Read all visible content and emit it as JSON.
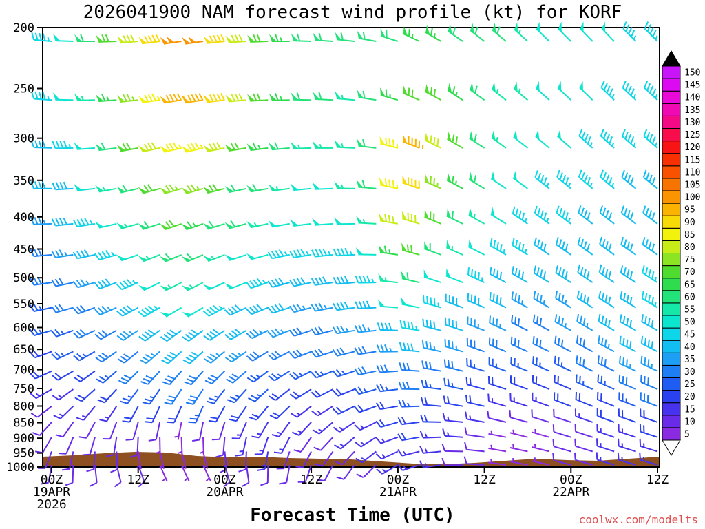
{
  "title": "2026041900 NAM forecast wind profile (kt) for KORF",
  "xlabel": "Forecast Time (UTC)",
  "watermark": "coolwx.com/modelts",
  "colors": {
    "background": "#ffffff",
    "frame": "#000000",
    "terrain": "#8e4f21",
    "watermark": "#e05050"
  },
  "colorbar": {
    "values": [
      5,
      10,
      15,
      20,
      25,
      30,
      35,
      40,
      45,
      50,
      55,
      60,
      65,
      70,
      75,
      80,
      85,
      90,
      95,
      100,
      105,
      110,
      115,
      120,
      125,
      130,
      135,
      140,
      145,
      150
    ],
    "colors": [
      "#8a2be2",
      "#6a2be8",
      "#4733ee",
      "#2a41f0",
      "#1e5cf2",
      "#1e7ef4",
      "#1e9ff6",
      "#12bdf2",
      "#0cd6e8",
      "#0ce6cf",
      "#15e8a8",
      "#22e27a",
      "#2edc4e",
      "#4fdc2e",
      "#8ce422",
      "#c8ec18",
      "#f2f20c",
      "#f8da06",
      "#fab400",
      "#fa9400",
      "#f87400",
      "#f85200",
      "#f83000",
      "#f81414",
      "#f80c4c",
      "#f50a86",
      "#f00ab4",
      "#ea0ad8",
      "#dc0af0",
      "#c814f8"
    ],
    "over_color": "#000000",
    "under_color": "#ffffff"
  },
  "chart_data": {
    "type": "wind-barb time-height profile",
    "model": "NAM",
    "init_time": "2026041900",
    "station": "KORF",
    "units": "kt",
    "y_axis": "pressure hPa, log scale, 200 top to 1000 bottom",
    "hours_span": 84,
    "barb_interval_hours": 3,
    "pressure_levels_hPa": [
      200,
      250,
      300,
      350,
      400,
      450,
      500,
      550,
      600,
      650,
      700,
      750,
      800,
      850,
      900,
      950,
      1000
    ],
    "time_ticks": [
      {
        "hour": 0,
        "label": "00Z"
      },
      {
        "hour": 12,
        "label": "12Z"
      },
      {
        "hour": 24,
        "label": "00Z"
      },
      {
        "hour": 36,
        "label": "12Z"
      },
      {
        "hour": 48,
        "label": "00Z"
      },
      {
        "hour": 60,
        "label": "12Z"
      },
      {
        "hour": 72,
        "label": "00Z"
      },
      {
        "hour": 84,
        "label": "12Z"
      }
    ],
    "date_labels": [
      {
        "hour": 0,
        "label": "19APR"
      },
      {
        "hour": 24,
        "label": "20APR"
      },
      {
        "hour": 48,
        "label": "21APR"
      },
      {
        "hour": 72,
        "label": "22APR"
      }
    ],
    "year_label": "2026",
    "speeds_kt": [
      [
        45,
        50,
        60,
        70,
        80,
        90,
        100,
        100,
        90,
        80,
        72,
        65,
        60,
        60,
        58,
        60,
        62,
        65,
        65,
        62,
        60,
        58,
        55,
        52,
        50,
        50,
        48,
        46,
        45
      ],
      [
        45,
        48,
        55,
        65,
        75,
        85,
        95,
        95,
        88,
        78,
        70,
        64,
        60,
        58,
        57,
        60,
        65,
        70,
        68,
        64,
        60,
        56,
        54,
        52,
        50,
        48,
        46,
        45,
        44
      ],
      [
        40,
        44,
        50,
        58,
        68,
        78,
        85,
        85,
        78,
        70,
        64,
        60,
        56,
        55,
        56,
        62,
        85,
        95,
        80,
        70,
        62,
        56,
        52,
        50,
        48,
        46,
        45,
        44,
        43
      ],
      [
        38,
        42,
        48,
        54,
        62,
        70,
        75,
        74,
        68,
        62,
        58,
        55,
        52,
        52,
        54,
        60,
        85,
        90,
        75,
        65,
        58,
        52,
        50,
        47,
        45,
        44,
        43,
        42,
        42
      ],
      [
        35,
        38,
        44,
        50,
        56,
        62,
        68,
        66,
        62,
        58,
        54,
        50,
        48,
        48,
        50,
        56,
        78,
        82,
        68,
        60,
        54,
        50,
        46,
        44,
        43,
        42,
        42,
        41,
        40
      ],
      [
        32,
        35,
        40,
        45,
        50,
        56,
        60,
        60,
        56,
        52,
        48,
        46,
        44,
        44,
        46,
        52,
        65,
        70,
        60,
        54,
        50,
        46,
        44,
        42,
        41,
        40,
        40,
        40,
        42
      ],
      [
        30,
        32,
        36,
        40,
        45,
        50,
        55,
        55,
        52,
        48,
        45,
        42,
        40,
        40,
        42,
        46,
        55,
        60,
        52,
        48,
        45,
        42,
        40,
        40,
        40,
        40,
        40,
        42,
        45
      ],
      [
        26,
        28,
        32,
        36,
        40,
        44,
        48,
        48,
        45,
        42,
        40,
        38,
        36,
        36,
        38,
        42,
        48,
        50,
        45,
        42,
        40,
        38,
        36,
        36,
        36,
        38,
        40,
        42,
        44
      ],
      [
        24,
        26,
        28,
        32,
        36,
        40,
        42,
        42,
        40,
        38,
        36,
        34,
        32,
        32,
        34,
        36,
        42,
        44,
        40,
        38,
        36,
        34,
        32,
        32,
        33,
        35,
        38,
        40,
        42
      ],
      [
        22,
        24,
        26,
        28,
        32,
        35,
        38,
        38,
        36,
        34,
        32,
        30,
        28,
        28,
        30,
        32,
        36,
        38,
        35,
        33,
        31,
        30,
        28,
        28,
        30,
        32,
        35,
        38,
        40
      ],
      [
        18,
        20,
        22,
        25,
        28,
        30,
        32,
        32,
        30,
        28,
        26,
        25,
        24,
        24,
        25,
        28,
        30,
        32,
        30,
        28,
        26,
        25,
        24,
        25,
        26,
        28,
        30,
        33,
        36
      ],
      [
        15,
        16,
        18,
        20,
        24,
        26,
        28,
        28,
        26,
        25,
        24,
        22,
        21,
        20,
        22,
        24,
        26,
        28,
        26,
        24,
        22,
        21,
        20,
        21,
        22,
        24,
        26,
        29,
        32
      ],
      [
        12,
        14,
        15,
        16,
        18,
        20,
        22,
        23,
        22,
        21,
        20,
        18,
        17,
        16,
        18,
        20,
        22,
        24,
        22,
        20,
        18,
        16,
        15,
        16,
        18,
        20,
        22,
        25,
        28
      ],
      [
        10,
        11,
        12,
        12,
        10,
        8,
        6,
        8,
        12,
        15,
        16,
        15,
        14,
        13,
        14,
        16,
        18,
        20,
        18,
        16,
        14,
        12,
        10,
        10,
        12,
        15,
        18,
        20,
        22
      ],
      [
        9,
        10,
        10,
        9,
        8,
        6,
        5,
        6,
        10,
        13,
        14,
        13,
        12,
        12,
        13,
        15,
        16,
        18,
        16,
        14,
        10,
        7,
        5,
        6,
        9,
        12,
        15,
        17,
        18
      ],
      [
        8,
        9,
        9,
        8,
        7,
        5,
        5,
        5,
        9,
        12,
        13,
        12,
        11,
        10,
        11,
        13,
        14,
        15,
        14,
        12,
        8,
        6,
        5,
        5,
        8,
        10,
        13,
        15,
        16
      ],
      [
        8,
        8,
        9,
        9,
        8,
        7,
        6,
        7,
        10,
        12,
        12,
        11,
        10,
        10,
        11,
        12,
        13,
        14,
        13,
        11,
        9,
        7,
        6,
        7,
        9,
        11,
        13,
        15,
        15
      ]
    ],
    "dirs_from_deg": [
      [
        275,
        272,
        270,
        268,
        265,
        263,
        262,
        262,
        264,
        266,
        268,
        270,
        272,
        274,
        276,
        280,
        288,
        295,
        300,
        305,
        308,
        310,
        312,
        314,
        315,
        316,
        316,
        315,
        315
      ],
      [
        274,
        271,
        269,
        266,
        264,
        262,
        261,
        261,
        263,
        265,
        267,
        269,
        271,
        273,
        275,
        279,
        286,
        293,
        298,
        303,
        306,
        308,
        310,
        312,
        313,
        314,
        314,
        313,
        313
      ],
      [
        272,
        269,
        266,
        263,
        260,
        258,
        257,
        257,
        259,
        261,
        263,
        265,
        268,
        270,
        273,
        277,
        284,
        291,
        296,
        300,
        303,
        306,
        308,
        310,
        311,
        312,
        312,
        311,
        311
      ],
      [
        270,
        267,
        264,
        260,
        257,
        255,
        254,
        254,
        256,
        258,
        260,
        263,
        265,
        268,
        271,
        275,
        282,
        289,
        294,
        298,
        301,
        304,
        306,
        308,
        309,
        310,
        310,
        309,
        309
      ],
      [
        268,
        264,
        261,
        257,
        254,
        252,
        251,
        251,
        253,
        255,
        258,
        260,
        263,
        266,
        269,
        273,
        280,
        287,
        292,
        296,
        299,
        302,
        304,
        306,
        307,
        308,
        308,
        307,
        307
      ],
      [
        265,
        261,
        258,
        254,
        251,
        248,
        247,
        247,
        249,
        252,
        255,
        258,
        261,
        264,
        267,
        271,
        278,
        285,
        290,
        294,
        297,
        300,
        302,
        304,
        305,
        306,
        306,
        305,
        305
      ],
      [
        262,
        258,
        254,
        250,
        247,
        244,
        243,
        243,
        246,
        249,
        252,
        255,
        258,
        262,
        265,
        269,
        276,
        283,
        288,
        292,
        295,
        298,
        300,
        302,
        303,
        304,
        304,
        303,
        303
      ],
      [
        258,
        254,
        250,
        246,
        242,
        240,
        239,
        239,
        242,
        245,
        248,
        252,
        255,
        259,
        262,
        267,
        274,
        281,
        286,
        290,
        293,
        296,
        298,
        300,
        301,
        302,
        302,
        301,
        301
      ],
      [
        254,
        250,
        245,
        241,
        237,
        235,
        234,
        234,
        237,
        240,
        244,
        248,
        252,
        256,
        260,
        264,
        272,
        279,
        284,
        288,
        291,
        294,
        296,
        298,
        299,
        300,
        300,
        299,
        299
      ],
      [
        250,
        245,
        240,
        235,
        231,
        229,
        228,
        228,
        231,
        235,
        239,
        243,
        248,
        252,
        256,
        261,
        269,
        276,
        282,
        286,
        289,
        292,
        294,
        296,
        297,
        298,
        298,
        297,
        297
      ],
      [
        245,
        240,
        234,
        229,
        225,
        222,
        221,
        221,
        225,
        229,
        233,
        238,
        243,
        248,
        252,
        258,
        266,
        274,
        280,
        284,
        287,
        290,
        292,
        294,
        295,
        296,
        296,
        295,
        295
      ],
      [
        240,
        234,
        228,
        222,
        217,
        214,
        213,
        213,
        217,
        222,
        227,
        232,
        238,
        243,
        248,
        254,
        263,
        271,
        277,
        282,
        285,
        288,
        290,
        292,
        293,
        294,
        294,
        293,
        293
      ],
      [
        232,
        226,
        219,
        213,
        208,
        205,
        204,
        204,
        209,
        214,
        220,
        226,
        232,
        238,
        244,
        250,
        260,
        268,
        275,
        280,
        283,
        286,
        288,
        290,
        291,
        292,
        292,
        291,
        291
      ],
      [
        222,
        215,
        208,
        201,
        196,
        192,
        191,
        191,
        197,
        203,
        210,
        216,
        223,
        230,
        237,
        244,
        254,
        263,
        271,
        276,
        280,
        283,
        285,
        287,
        288,
        289,
        290,
        289,
        289
      ],
      [
        210,
        203,
        196,
        189,
        183,
        179,
        178,
        178,
        185,
        192,
        199,
        207,
        215,
        223,
        230,
        238,
        250,
        260,
        268,
        274,
        278,
        281,
        284,
        286,
        287,
        288,
        289,
        288,
        288
      ],
      [
        200,
        192,
        184,
        177,
        171,
        167,
        166,
        166,
        174,
        182,
        190,
        198,
        207,
        215,
        223,
        232,
        245,
        256,
        265,
        271,
        276,
        280,
        282,
        284,
        286,
        287,
        288,
        287,
        287
      ],
      [
        190,
        182,
        174,
        166,
        160,
        156,
        155,
        155,
        164,
        172,
        181,
        190,
        199,
        208,
        217,
        226,
        240,
        252,
        262,
        269,
        274,
        278,
        281,
        283,
        285,
        286,
        287,
        286,
        286
      ]
    ],
    "terrain_profile": [
      [
        0,
        15
      ],
      [
        0.05,
        17
      ],
      [
        0.1,
        20
      ],
      [
        0.15,
        22
      ],
      [
        0.2,
        21
      ],
      [
        0.25,
        16
      ],
      [
        0.3,
        14
      ],
      [
        0.35,
        15
      ],
      [
        0.4,
        13
      ],
      [
        0.45,
        12
      ],
      [
        0.5,
        11
      ],
      [
        0.55,
        8
      ],
      [
        0.6,
        5
      ],
      [
        0.65,
        4
      ],
      [
        0.7,
        6
      ],
      [
        0.75,
        9
      ],
      [
        0.8,
        12
      ],
      [
        0.85,
        10
      ],
      [
        0.9,
        9
      ],
      [
        0.95,
        12
      ],
      [
        1,
        15
      ]
    ]
  }
}
